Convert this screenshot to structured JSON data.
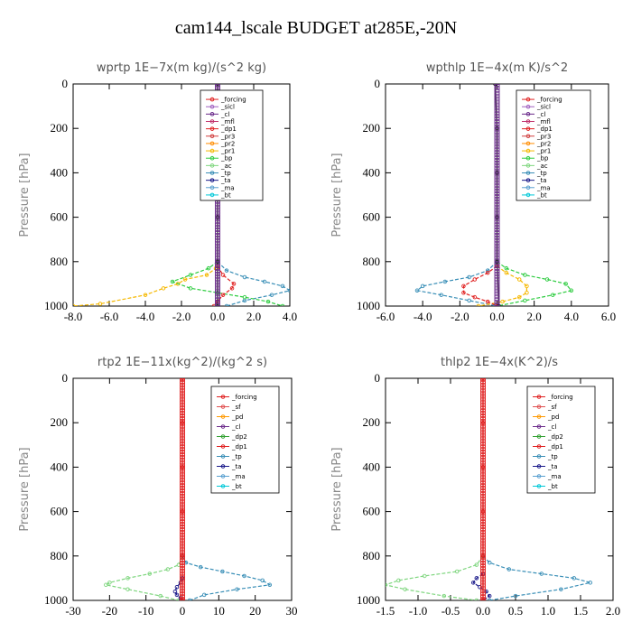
{
  "title": "cam144_lscale  BUDGET at285E,-20N",
  "chart_data": [
    {
      "type": "line",
      "title": "wprtp   1E−7x(m kg)/(s^2 kg)",
      "ylabel": "Pressure [hPa]",
      "xlim": [
        -8,
        4
      ],
      "ylim": [
        1000,
        0
      ],
      "xticks": [
        -8,
        -6,
        -4,
        -2,
        0,
        2,
        4
      ],
      "xtick_labels": [
        "-8.0",
        "-6.0",
        "-4.0",
        "-2.0",
        "0.0",
        "2.0",
        "4.0"
      ],
      "yticks": [
        0,
        200,
        400,
        600,
        800,
        1000
      ],
      "legend": "top-right",
      "legend_entries": [
        "_forcing",
        "_sicl",
        "_cl",
        "_mfl",
        "_dp1",
        "_pr3",
        "_pr2",
        "_pr1",
        "_bp",
        "_ac",
        "_tp",
        "_ta",
        "_ma",
        "_bt"
      ],
      "series": [
        {
          "name": "_pr1",
          "color": "#f5b800",
          "x": [
            0,
            -0.1,
            -0.6,
            -1.8,
            -2.2,
            -3.0,
            -4.0,
            -6.5,
            -8.0
          ],
          "y": [
            800,
            830,
            860,
            880,
            900,
            920,
            950,
            990,
            1000
          ]
        },
        {
          "name": "_tp",
          "color": "#3a8fb7",
          "x": [
            0,
            0.5,
            1.5,
            2.6,
            3.6,
            4.0,
            3.0,
            1.5,
            0.5
          ],
          "y": [
            800,
            840,
            870,
            890,
            910,
            930,
            950,
            975,
            1000
          ]
        },
        {
          "name": "_bp",
          "color": "#2ecc40",
          "x": [
            0,
            -0.5,
            -1.5,
            -2.5,
            -1.5,
            0,
            1.5,
            2.8,
            3.6
          ],
          "y": [
            800,
            830,
            860,
            890,
            920,
            940,
            960,
            980,
            1000
          ]
        },
        {
          "name": "_dp1",
          "color": "#e02020",
          "x": [
            0,
            0.3,
            0.9,
            0.8,
            0.3,
            0,
            -0.2
          ],
          "y": [
            820,
            860,
            900,
            920,
            950,
            980,
            1000
          ]
        },
        {
          "name": "_bt",
          "color": "#222222",
          "x": [
            0,
            0,
            0,
            0,
            0,
            0
          ],
          "y": [
            0,
            200,
            400,
            600,
            800,
            1000
          ]
        }
      ]
    },
    {
      "type": "line",
      "title": "wpthlp   1E−4x(m K)/s^2",
      "ylabel": "Pressure [hPa]",
      "xlim": [
        -6,
        6
      ],
      "ylim": [
        1000,
        0
      ],
      "xticks": [
        -6,
        -4,
        -2,
        0,
        2,
        4,
        6
      ],
      "xtick_labels": [
        "-6.0",
        "-4.0",
        "-2.0",
        "0.0",
        "2.0",
        "4.0",
        "6.0"
      ],
      "yticks": [
        0,
        200,
        400,
        600,
        800,
        1000
      ],
      "legend": "top-right",
      "legend_entries": [
        "_forcing",
        "_sicl",
        "_cl",
        "_mfl",
        "_dp1",
        "_pr3",
        "_pr2",
        "_pr1",
        "_bp",
        "_ac",
        "_tp",
        "_ta",
        "_ma",
        "_bt"
      ],
      "series": [
        {
          "name": "_tp",
          "color": "#3a8fb7",
          "x": [
            0,
            -0.5,
            -1.5,
            -2.8,
            -4.0,
            -4.3,
            -3.0,
            -1.5,
            0
          ],
          "y": [
            800,
            840,
            870,
            890,
            910,
            930,
            950,
            975,
            1000
          ]
        },
        {
          "name": "_bp",
          "color": "#2ecc40",
          "x": [
            0,
            0.5,
            1.5,
            2.7,
            3.7,
            4.0,
            3.0,
            1.5,
            0
          ],
          "y": [
            800,
            830,
            860,
            880,
            900,
            930,
            950,
            975,
            1000
          ]
        },
        {
          "name": "_pr1",
          "color": "#f5b800",
          "x": [
            0,
            0.5,
            1.2,
            1.6,
            1.6,
            1.2,
            0.3,
            -1.0
          ],
          "y": [
            820,
            850,
            880,
            910,
            940,
            960,
            980,
            1000
          ]
        },
        {
          "name": "_dp1",
          "color": "#e02020",
          "x": [
            0,
            -0.5,
            -1.2,
            -1.8,
            -1.8,
            -1.2,
            -0.5,
            0
          ],
          "y": [
            820,
            850,
            880,
            910,
            940,
            960,
            980,
            1000
          ]
        },
        {
          "name": "_bt",
          "color": "#222222",
          "x": [
            -0.1,
            0,
            0,
            0,
            0,
            0.1
          ],
          "y": [
            0,
            200,
            400,
            600,
            800,
            1000
          ]
        }
      ]
    },
    {
      "type": "line",
      "title": "rtp2   1E−11x(kg^2)/(kg^2 s)",
      "ylabel": "Pressure [hPa]",
      "xlim": [
        -30,
        30
      ],
      "ylim": [
        1000,
        0
      ],
      "xticks": [
        -30,
        -20,
        -10,
        0,
        10,
        20,
        30
      ],
      "xtick_labels": [
        "-30",
        "-20",
        "-10",
        "0",
        "10",
        "20",
        "30"
      ],
      "yticks": [
        0,
        200,
        400,
        600,
        800,
        1000
      ],
      "legend": "top-right",
      "legend_entries": [
        "_forcing",
        "_sf",
        "_pd",
        "_cl",
        "_dp2",
        "_dp1",
        "_tp",
        "_ta",
        "_ma",
        "_bt"
      ],
      "series": [
        {
          "name": "_dp1",
          "color": "#7fd67f",
          "x": [
            0,
            -1,
            -4,
            -9,
            -15,
            -20,
            -21,
            -15,
            -6,
            -1
          ],
          "y": [
            800,
            840,
            860,
            880,
            900,
            920,
            930,
            950,
            980,
            1000
          ]
        },
        {
          "name": "_tp",
          "color": "#3a8fb7",
          "x": [
            0,
            1,
            5,
            11,
            17,
            22,
            24,
            15,
            6,
            2
          ],
          "y": [
            800,
            830,
            850,
            870,
            890,
            910,
            930,
            950,
            975,
            1000
          ]
        },
        {
          "name": "_ta",
          "color": "#1a1a8a",
          "x": [
            0,
            -0.5,
            -1.5,
            -2,
            -1.5,
            -0.5,
            0
          ],
          "y": [
            900,
            920,
            940,
            960,
            975,
            990,
            1000
          ]
        },
        {
          "name": "_forcing",
          "color": "#e02020",
          "x": [
            0,
            0,
            0,
            0,
            0,
            0
          ],
          "y": [
            0,
            200,
            400,
            600,
            800,
            1000
          ]
        }
      ]
    },
    {
      "type": "line",
      "title": "thlp2   1E−4x(K^2)/s",
      "ylabel": "Pressure [hPa]",
      "xlim": [
        -1.5,
        2.0
      ],
      "ylim": [
        1000,
        0
      ],
      "xticks": [
        -1.5,
        -1.0,
        -0.5,
        0.0,
        0.5,
        1.0,
        1.5,
        2.0
      ],
      "xtick_labels": [
        "-1.5",
        "-1.0",
        "-0.5",
        "0.0",
        "0.5",
        "1.0",
        "1.5",
        "2.0"
      ],
      "yticks": [
        0,
        200,
        400,
        600,
        800,
        1000
      ],
      "legend": "top-right",
      "legend_entries": [
        "_forcing",
        "_sf",
        "_pd",
        "_cl",
        "_dp2",
        "_dp1",
        "_tp",
        "_ta",
        "_ma",
        "_bt"
      ],
      "series": [
        {
          "name": "_dp1",
          "color": "#7fd67f",
          "x": [
            0,
            -0.1,
            -0.4,
            -0.9,
            -1.3,
            -1.5,
            -1.2,
            -0.6,
            -0.1
          ],
          "y": [
            800,
            840,
            870,
            890,
            910,
            930,
            950,
            980,
            1000
          ]
        },
        {
          "name": "_tp",
          "color": "#3a8fb7",
          "x": [
            0,
            0.1,
            0.4,
            0.9,
            1.4,
            1.65,
            1.2,
            0.5,
            0.1
          ],
          "y": [
            800,
            830,
            860,
            880,
            900,
            920,
            950,
            980,
            1000
          ]
        },
        {
          "name": "_ta",
          "color": "#1a1a8a",
          "x": [
            0,
            -0.1,
            -0.15,
            -0.05,
            0.05,
            0.1,
            0
          ],
          "y": [
            880,
            900,
            920,
            940,
            960,
            980,
            1000
          ]
        },
        {
          "name": "_forcing",
          "color": "#e02020",
          "x": [
            0,
            0,
            0,
            0,
            0,
            0
          ],
          "y": [
            0,
            200,
            400,
            600,
            800,
            1000
          ]
        }
      ]
    }
  ]
}
